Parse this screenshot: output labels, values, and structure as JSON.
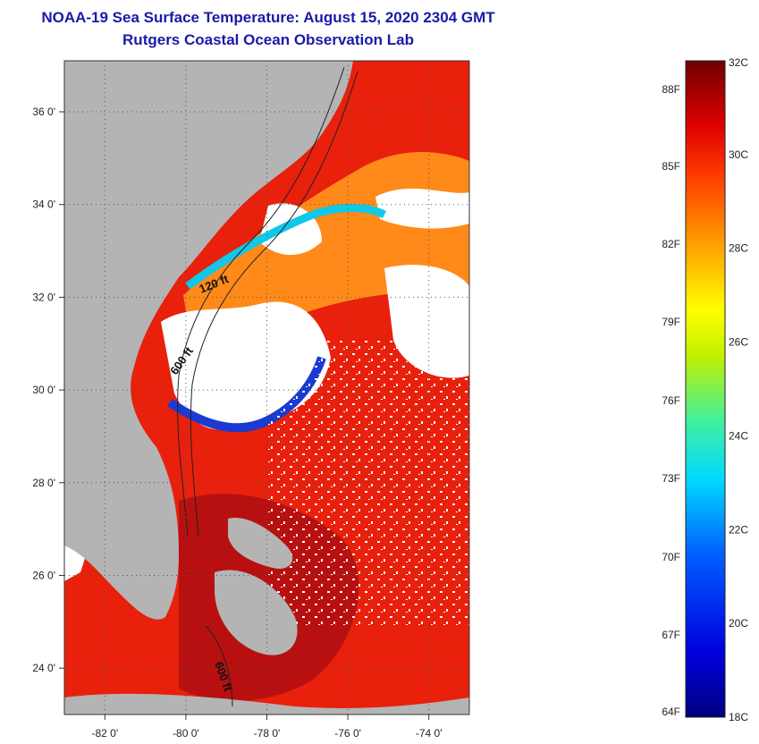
{
  "title": {
    "line1": "NOAA-19 Sea Surface Temperature:  August 15, 2020 2304 GMT",
    "line2": "Rutgers Coastal Ocean Observation Lab"
  },
  "map": {
    "lon_range": [
      -83.0,
      -73.0
    ],
    "lat_range": [
      23.0,
      37.1
    ],
    "lat_ticks": [
      {
        "value": 36,
        "label": "36 0'"
      },
      {
        "value": 34,
        "label": "34 0'"
      },
      {
        "value": 32,
        "label": "32 0'"
      },
      {
        "value": 30,
        "label": "30 0'"
      },
      {
        "value": 28,
        "label": "28 0'"
      },
      {
        "value": 26,
        "label": "26 0'"
      },
      {
        "value": 24,
        "label": "24 0'"
      }
    ],
    "lon_ticks": [
      {
        "value": -82,
        "label": "-82 0'"
      },
      {
        "value": -80,
        "label": "-80 0'"
      },
      {
        "value": -78,
        "label": "-78 0'"
      },
      {
        "value": -76,
        "label": "-76 0'"
      },
      {
        "value": -74,
        "label": "-74 0'"
      }
    ],
    "contour_labels": {
      "c120": "120 ft",
      "c600a": "600 ft",
      "c600b": "600 ft"
    },
    "colors": {
      "land": "#b4b4b4",
      "cloud": "#ffffff",
      "warm": "#e8200c",
      "hot": "#b81010",
      "orange": "#ff8a1a",
      "cool_blue": "#1a3ad0",
      "cool_cyan": "#10c8e8"
    }
  },
  "colorbar": {
    "celsius_labels": [
      "32C",
      "30C",
      "28C",
      "26C",
      "24C",
      "22C",
      "20C",
      "18C"
    ],
    "fahrenheit_labels": [
      "88F",
      "85F",
      "82F",
      "79F",
      "76F",
      "73F",
      "70F",
      "67F",
      "64F"
    ],
    "range_c": [
      18,
      32
    ]
  }
}
